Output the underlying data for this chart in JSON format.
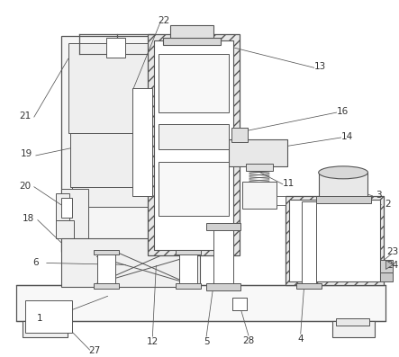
{
  "bg_color": "#ffffff",
  "line_color": "#555555",
  "label_color": "#333333",
  "font_size": 7.5,
  "fig_w": 4.43,
  "fig_h": 3.97,
  "dpi": 100
}
